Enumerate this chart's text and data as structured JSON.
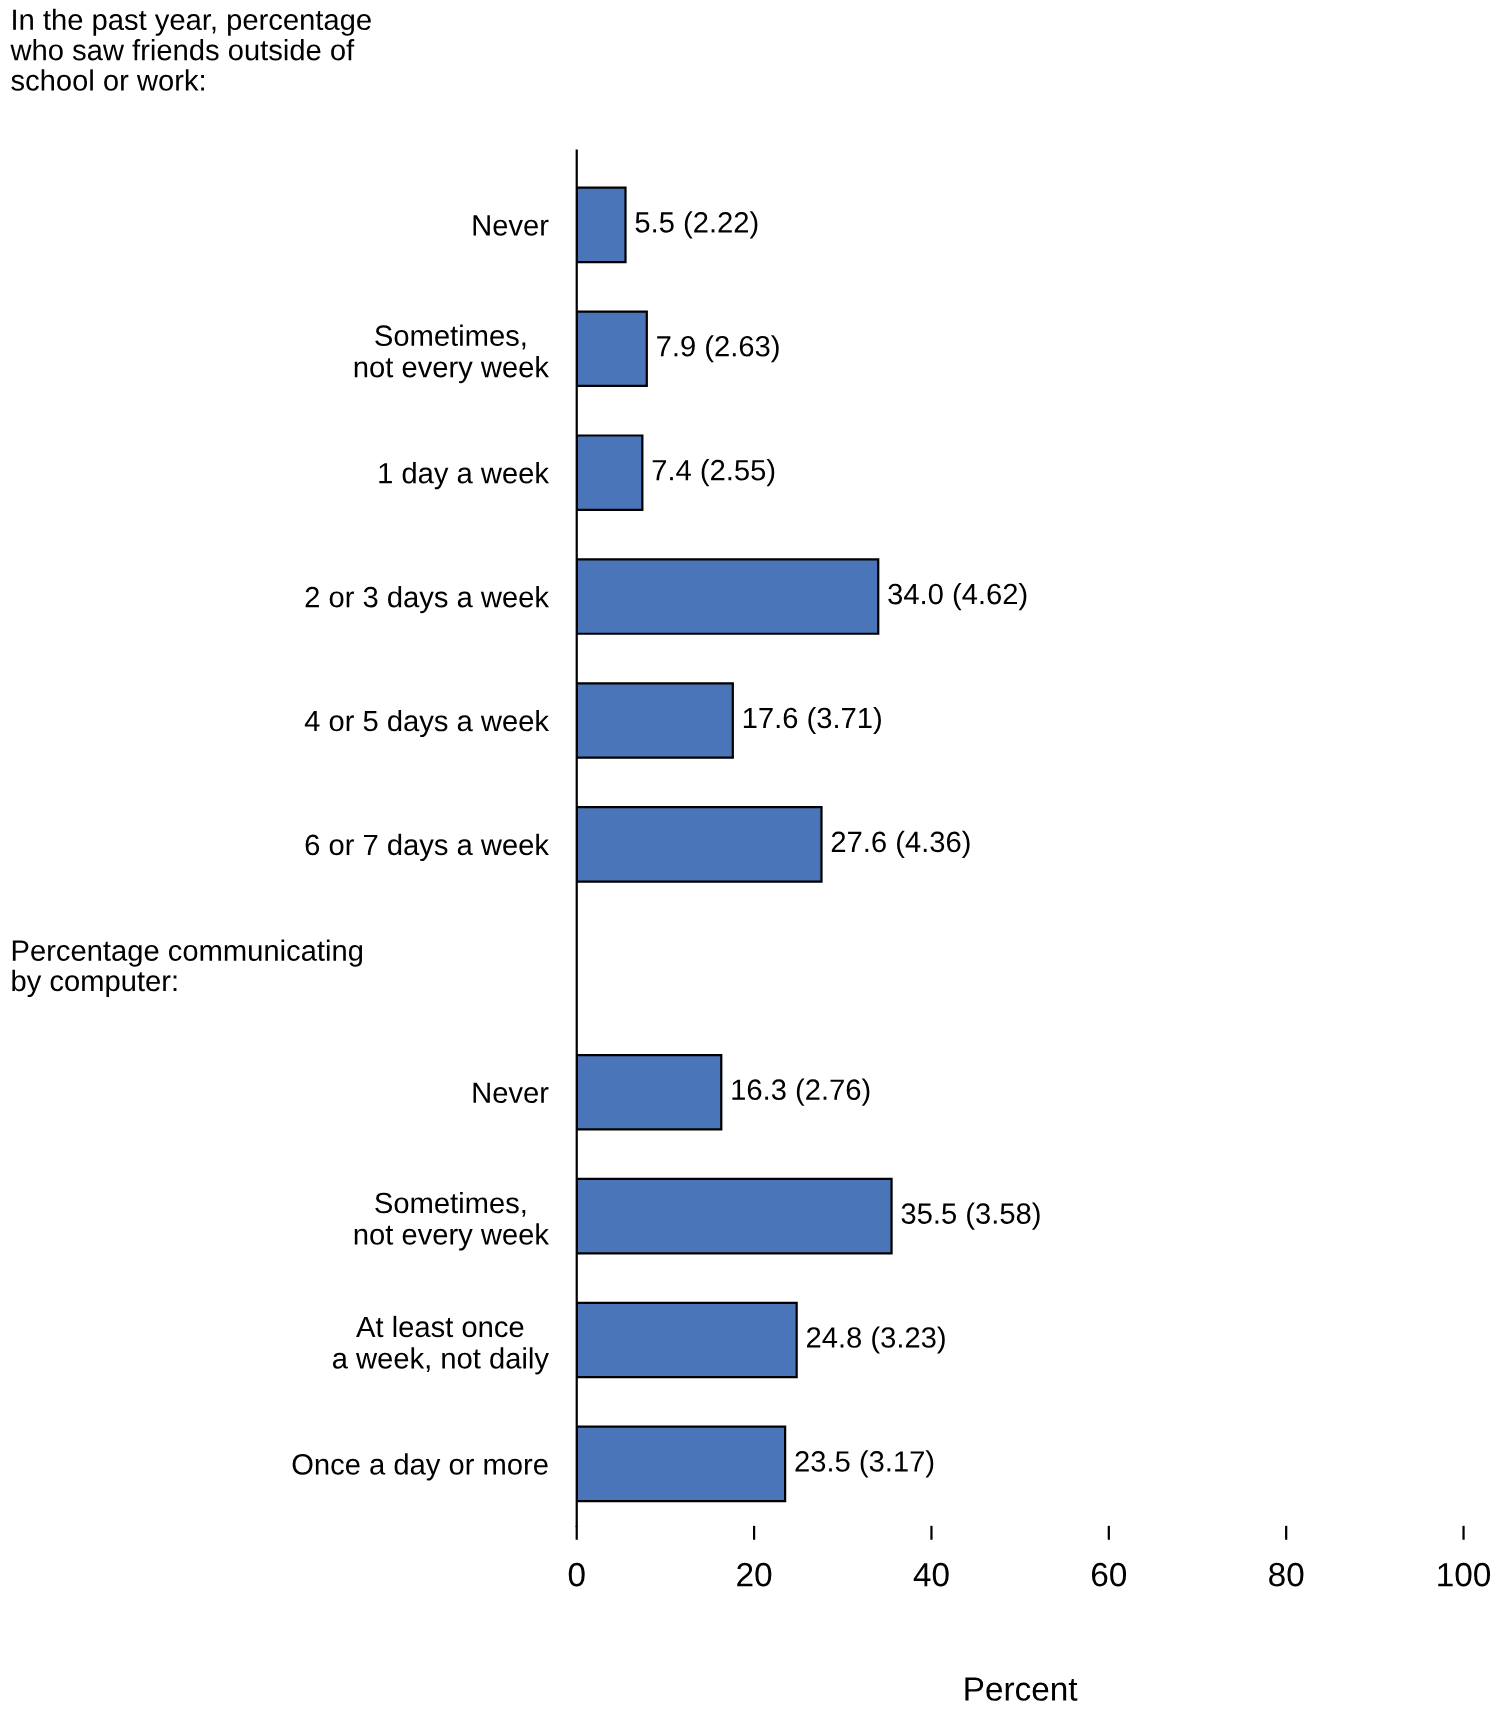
{
  "chart_data": {
    "type": "bar",
    "orientation": "horizontal",
    "title": "In the past year, percentage\nwho saw friends outside of\nschool or work:",
    "annotations": [
      "Percentage communicating\nby computer:"
    ],
    "categories": [
      "Never",
      "Sometimes,\nnot every week",
      "1 day a week",
      "2 or 3 days a week",
      "4 or 5 days a week",
      "6 or 7 days a week",
      null,
      "Never",
      "Sometimes,\nnot every week",
      "At least once\na week, not daily",
      "Once a day or more"
    ],
    "values": [
      5.5,
      7.9,
      7.4,
      34.0,
      17.6,
      27.6,
      null,
      16.3,
      35.5,
      24.8,
      23.5
    ],
    "value_labels": [
      "5.5 (2.22)",
      "7.9 (2.63)",
      "7.4 (2.55)",
      "34.0 (4.62)",
      "17.6 (3.71)",
      "27.6 (4.36)",
      null,
      "16.3 (2.76)",
      "35.5 (3.58)",
      "24.8 (3.23)",
      "23.5 (3.17)"
    ],
    "color": "#4a76b9",
    "xlim": [
      0,
      100
    ],
    "xticks": [
      0,
      20,
      40,
      60,
      80,
      100
    ],
    "xlabel": "Percent",
    "grid": false
  }
}
